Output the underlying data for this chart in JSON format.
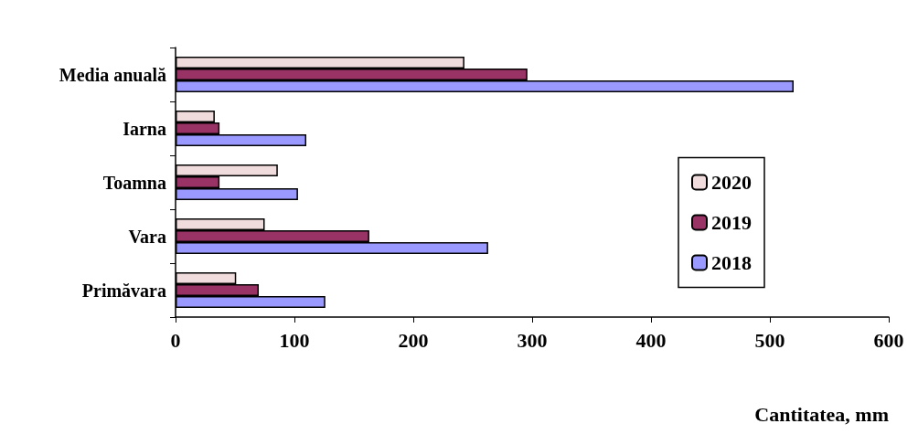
{
  "chart_data": {
    "type": "bar",
    "orientation": "horizontal",
    "xlabel": "Cantitatea, mm",
    "categories": [
      "Media anuală",
      "Iarna",
      "Toamna",
      "Vara",
      "Primăvara"
    ],
    "series": [
      {
        "name": "2020",
        "color": "#f0dcdc",
        "values": [
          243,
          33,
          86,
          75,
          51
        ]
      },
      {
        "name": "2019",
        "color": "#993366",
        "values": [
          296,
          37,
          37,
          163,
          70
        ]
      },
      {
        "name": "2018",
        "color": "#9999ff",
        "values": [
          520,
          110,
          103,
          263,
          126
        ]
      }
    ],
    "xlim": [
      0,
      600
    ],
    "xticks": [
      0,
      100,
      200,
      300,
      400,
      500,
      600
    ],
    "grid": false,
    "legend": "right"
  }
}
